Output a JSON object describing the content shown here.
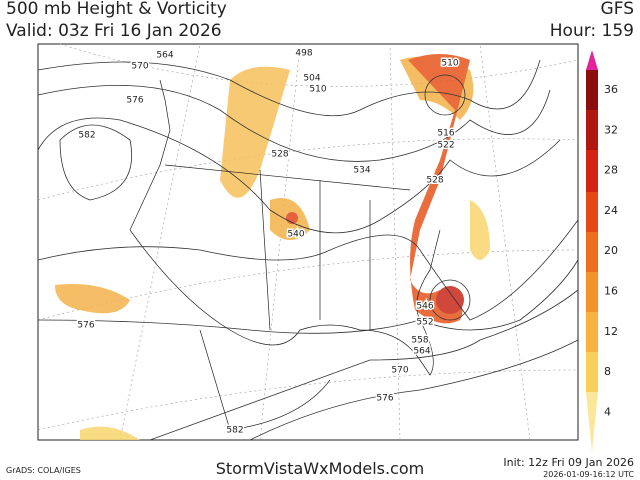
{
  "header": {
    "title": "500 mb Height & Vorticity",
    "valid": "Valid: 03z Fri 16 Jan 2026",
    "model": "GFS",
    "hour": "Hour: 159"
  },
  "colorbar": {
    "labels": [
      "36",
      "32",
      "28",
      "24",
      "20",
      "16",
      "12",
      "8",
      "4"
    ]
  },
  "contour_labels": [
    "564",
    "570",
    "576",
    "582",
    "498",
    "504",
    "510",
    "510",
    "516",
    "522",
    "528",
    "534",
    "528",
    "540",
    "546",
    "552",
    "558",
    "564",
    "570",
    "576",
    "576",
    "582"
  ],
  "footer": {
    "software": "GrADS: COLA/IGES",
    "site": "StormVistaWxModels.com",
    "init": "Init: 12z Fri 09 Jan 2026",
    "timestamp": "2026-01-09-16:12 UTC"
  }
}
